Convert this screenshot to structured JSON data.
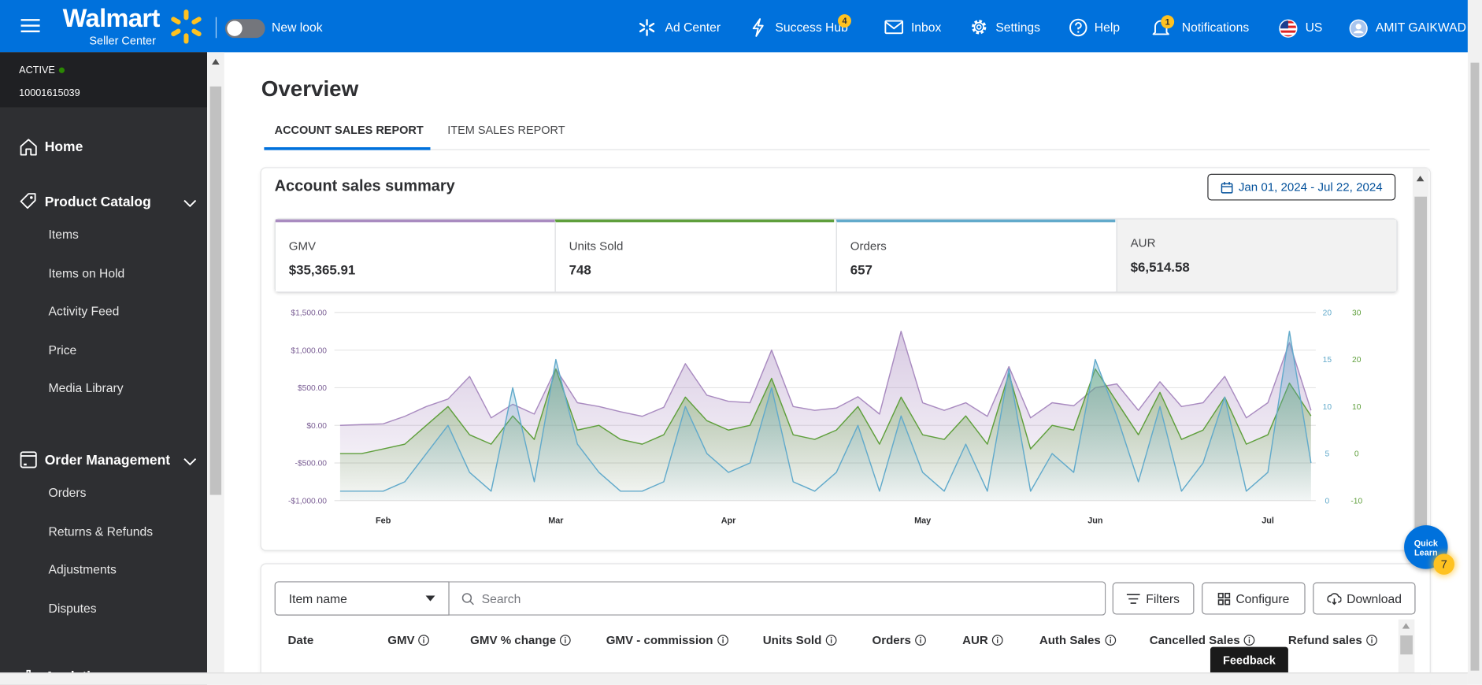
{
  "header": {
    "brand": "Walmart",
    "brand_sub": "Seller Center",
    "toggle": "New look",
    "nav": [
      "Ad Center",
      "Success Hub",
      "Inbox",
      "Settings",
      "Help",
      "Notifications",
      "US",
      "AMIT GAIKWAD"
    ],
    "badges": {
      "success_hub": "4",
      "notifications": "1"
    }
  },
  "sidebar": {
    "status": "ACTIVE",
    "seller_id": "10001615039",
    "home": "Home",
    "sections": [
      {
        "title": "Product Catalog",
        "items": [
          "Items",
          "Items on Hold",
          "Activity Feed",
          "Price",
          "Media Library"
        ]
      },
      {
        "title": "Order Management",
        "items": [
          "Orders",
          "Returns & Refunds",
          "Adjustments",
          "Disputes"
        ]
      },
      {
        "title": "Analytics",
        "items": []
      }
    ]
  },
  "page": {
    "title": "Overview",
    "tabs": [
      "ACCOUNT SALES REPORT",
      "ITEM SALES REPORT"
    ]
  },
  "summary": {
    "title": "Account sales summary",
    "date_range": "Jan 01, 2024 - Jul 22, 2024",
    "kpis": [
      {
        "label": "GMV",
        "value": "$35,365.91"
      },
      {
        "label": "Units Sold",
        "value": "748"
      },
      {
        "label": "Orders",
        "value": "657"
      },
      {
        "label": "AUR",
        "value": "$6,514.58"
      }
    ]
  },
  "chart_data": {
    "type": "area",
    "categories": [
      null,
      null,
      "Feb",
      null,
      null,
      null,
      null,
      null,
      null,
      null,
      "Mar",
      null,
      null,
      null,
      null,
      null,
      null,
      null,
      "Apr",
      null,
      null,
      null,
      null,
      null,
      null,
      null,
      null,
      "May",
      null,
      null,
      null,
      null,
      null,
      null,
      null,
      "Jun",
      null,
      null,
      null,
      null,
      null,
      null,
      null,
      "Jul",
      null,
      null
    ],
    "series": [
      {
        "color": "#a98bc0",
        "values": [
          0,
          10,
          20,
          120,
          250,
          350,
          650,
          100,
          280,
          150,
          750,
          300,
          250,
          180,
          120,
          240,
          820,
          400,
          320,
          300,
          1000,
          250,
          200,
          230,
          380,
          150,
          1250,
          300,
          200,
          300,
          120,
          780,
          100,
          300,
          260,
          500,
          550,
          200,
          580,
          250,
          300,
          650,
          100,
          300,
          1100,
          200
        ]
      },
      {
        "color": "#5f9f3c",
        "axis": "y3",
        "values": [
          0,
          0,
          1,
          2,
          6,
          10,
          4,
          2,
          8,
          3,
          18,
          5,
          6,
          3,
          2,
          4,
          12,
          7,
          5,
          6,
          16,
          4,
          3,
          5,
          10,
          2,
          12,
          4,
          3,
          8,
          2,
          17,
          1,
          6,
          5,
          18,
          11,
          4,
          13,
          3,
          5,
          12,
          2,
          4,
          15,
          8
        ]
      },
      {
        "color": "#62aacb",
        "axis": "y2",
        "values": [
          1,
          1,
          1,
          2,
          5,
          8,
          3,
          1,
          12,
          2,
          15,
          6,
          3,
          1,
          1,
          2,
          10,
          5,
          3,
          4,
          12,
          2,
          1,
          3,
          8,
          1,
          9,
          3,
          1,
          6,
          1,
          14,
          1,
          5,
          3,
          15,
          9,
          2,
          10,
          1,
          4,
          11,
          1,
          3,
          18,
          4
        ]
      }
    ],
    "ylim": [
      -1000,
      1500
    ],
    "yticks": [
      {
        "value": -1000,
        "label": "-$1,000.00"
      },
      {
        "value": -500,
        "label": "-$500.00"
      },
      {
        "value": 0,
        "label": "$0.00"
      },
      {
        "value": 500,
        "label": "$500.00"
      },
      {
        "value": 1000,
        "label": "$1,000.00"
      },
      {
        "value": 1500,
        "label": "$1,500.00"
      }
    ],
    "y2lim": [
      0,
      20
    ],
    "y2ticks": [
      0,
      5,
      10,
      15,
      20
    ],
    "y3lim": [
      -10,
      30
    ],
    "y3ticks": [
      -10,
      0,
      10,
      20,
      30
    ],
    "grid": true
  },
  "table": {
    "column_select": "Item name",
    "search_placeholder": "Search",
    "buttons": [
      "Filters",
      "Configure",
      "Download"
    ],
    "columns": [
      "Date",
      "GMV",
      "GMV % change",
      "GMV - commission",
      "Units Sold",
      "Orders",
      "AUR",
      "Auth Sales",
      "Cancelled Sales",
      "Refund sales"
    ]
  },
  "quick_learn": {
    "label": "Quick Learn",
    "count": "7"
  },
  "feedback": "Feedback"
}
